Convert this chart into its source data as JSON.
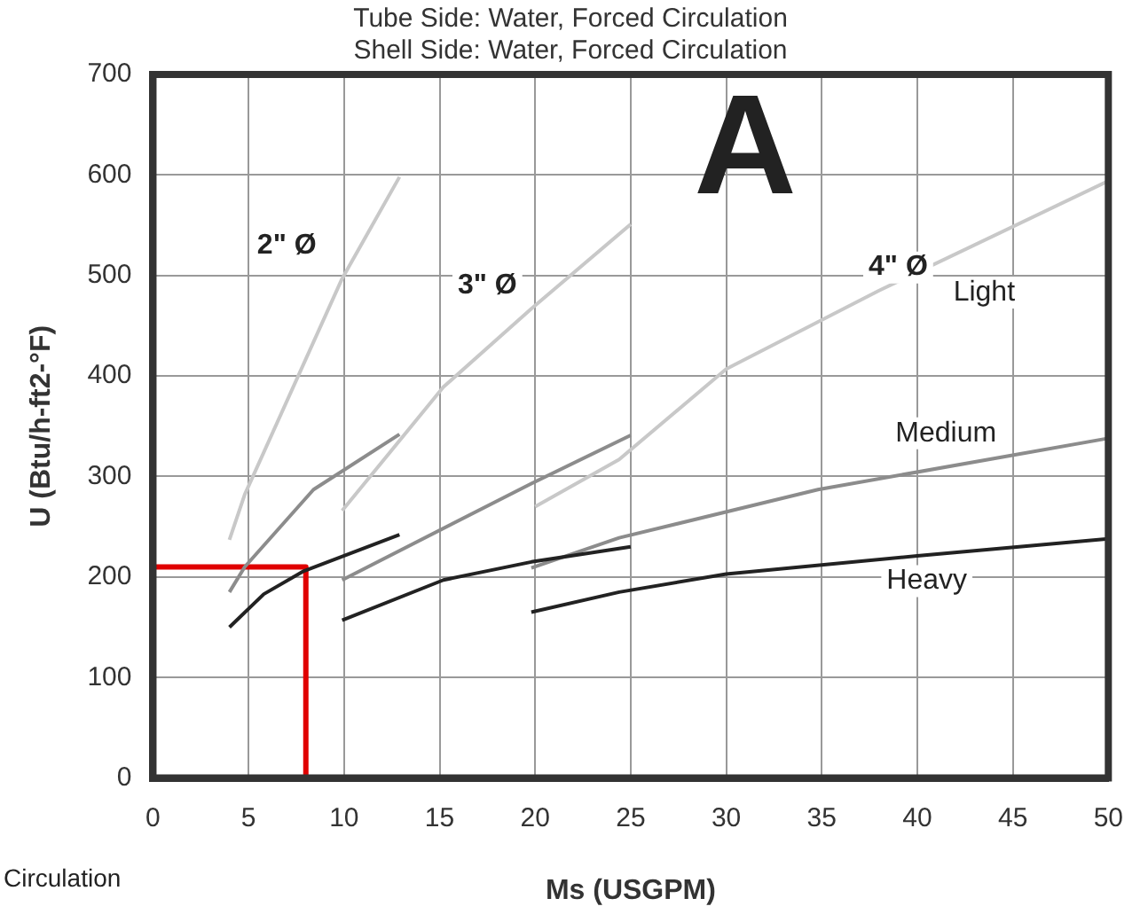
{
  "chart_data": {
    "type": "line",
    "title": "Tube Side: Water, Forced Circulation",
    "subtitle": "Shell Side: Water, Forced Circulation",
    "xlabel": "Ms (USGPM)",
    "ylabel": "U (Btu/h-ft2-°F)",
    "xlim": [
      0,
      50
    ],
    "xticks": [
      0,
      5,
      10,
      15,
      20,
      25,
      30,
      35,
      40,
      45,
      50
    ],
    "ylim": [
      0,
      700
    ],
    "yticks": [
      0,
      100,
      200,
      300,
      400,
      500,
      600,
      700
    ],
    "grid": true,
    "legend": false,
    "marker": "none",
    "series": [
      {
        "color": "#c8c8c8",
        "x": [
          4,
          4.8,
          9.9,
          12.9
        ],
        "values": [
          237,
          282,
          497,
          598
        ]
      },
      {
        "color": "#8c8c8c",
        "x": [
          4,
          4.8,
          8.4,
          12.9
        ],
        "values": [
          185,
          210,
          287,
          342
        ]
      },
      {
        "color": "#222222",
        "x": [
          4,
          5.8,
          7.9,
          12.9
        ],
        "values": [
          150,
          183,
          206,
          242
        ]
      },
      {
        "color": "#c8c8c8",
        "x": [
          9.9,
          15.2,
          19.8,
          25
        ],
        "values": [
          266,
          389,
          467,
          551
        ]
      },
      {
        "color": "#8c8c8c",
        "x": [
          9.9,
          19.8,
          25
        ],
        "values": [
          197,
          293,
          341
        ]
      },
      {
        "color": "#222222",
        "x": [
          9.9,
          15.2,
          19.8,
          25
        ],
        "values": [
          157,
          197,
          215,
          230
        ]
      },
      {
        "color": "#c8c8c8",
        "x": [
          20,
          24.4,
          30,
          38,
          50
        ],
        "values": [
          270,
          317,
          407,
          485,
          594
        ]
      },
      {
        "color": "#8c8c8c",
        "x": [
          19.8,
          24.4,
          34.8,
          50
        ],
        "values": [
          209,
          239,
          287,
          338
        ]
      },
      {
        "color": "#222222",
        "x": [
          19.8,
          24.4,
          30,
          40,
          50
        ],
        "values": [
          165,
          185,
          203,
          221,
          238
        ]
      },
      {
        "color": "#e00000",
        "x": [
          0,
          8,
          8
        ],
        "values": [
          210,
          210,
          0
        ]
      }
    ],
    "annotations": [
      "A",
      "Circulation",
      {
        "text": "2\" Ø",
        "x": 7,
        "y": 530
      },
      {
        "text": "3\" Ø",
        "x": 17.5,
        "y": 490
      },
      {
        "text": "4\" Ø",
        "x": 39,
        "y": 508
      },
      {
        "text": "Light",
        "x": 43.5,
        "y": 483
      },
      "Medium",
      "Heavy"
    ]
  }
}
